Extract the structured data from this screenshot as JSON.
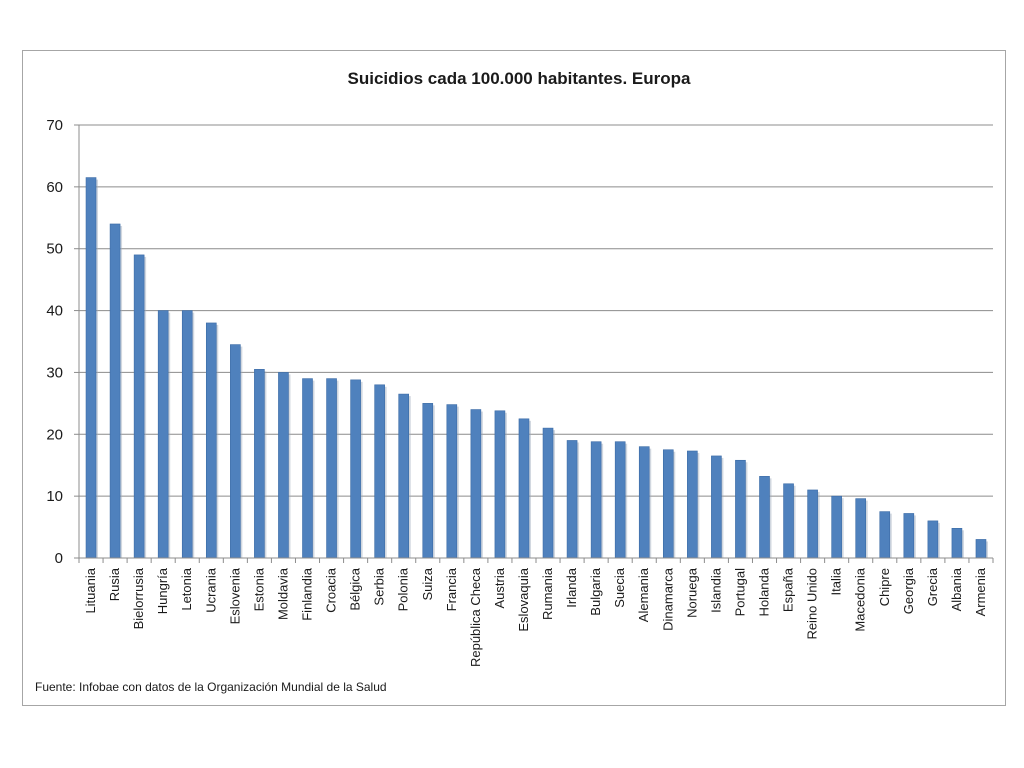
{
  "chart_data": {
    "type": "bar",
    "title": "Suicidios cada 100.000 habitantes. Europa",
    "xlabel": "",
    "ylabel": "",
    "ylim": [
      0,
      70
    ],
    "yticks": [
      "0",
      "10",
      "20",
      "30",
      "40",
      "50",
      "60",
      "70"
    ],
    "grid": true,
    "legend": "none",
    "bar_color": "#4f81bd",
    "categories": [
      "Lituania",
      "Rusia",
      "Bielorrusia",
      "Hungría",
      "Letonia",
      "Ucrania",
      "Eslovenia",
      "Estonia",
      "Moldavia",
      "Finlandia",
      "Croacia",
      "Bélgica",
      "Serbia",
      "Polonia",
      "Suiza",
      "Francia",
      "República Checa",
      "Austria",
      "Eslovaquia",
      "Rumania",
      "Irlanda",
      "Bulgaria",
      "Suecia",
      "Alemania",
      "Dinamarca",
      "Noruega",
      "Islandia",
      "Portugal",
      "Holanda",
      "España",
      "Reino Unido",
      "Italia",
      "Macedonia",
      "Chipre",
      "Georgia",
      "Grecia",
      "Albania",
      "Armenia"
    ],
    "values": [
      61.5,
      54,
      49,
      40,
      40,
      38,
      34.5,
      30.5,
      30,
      29,
      29,
      28.8,
      28,
      26.5,
      25,
      24.8,
      24,
      23.8,
      22.5,
      21,
      19,
      18.8,
      18.8,
      18,
      17.5,
      17.3,
      16.5,
      15.8,
      13.2,
      12,
      11,
      10,
      9.6,
      7.5,
      7.2,
      6,
      4.8,
      3
    ],
    "source": "Fuente: Infobae con datos de la Organización Mundial de la Salud"
  }
}
